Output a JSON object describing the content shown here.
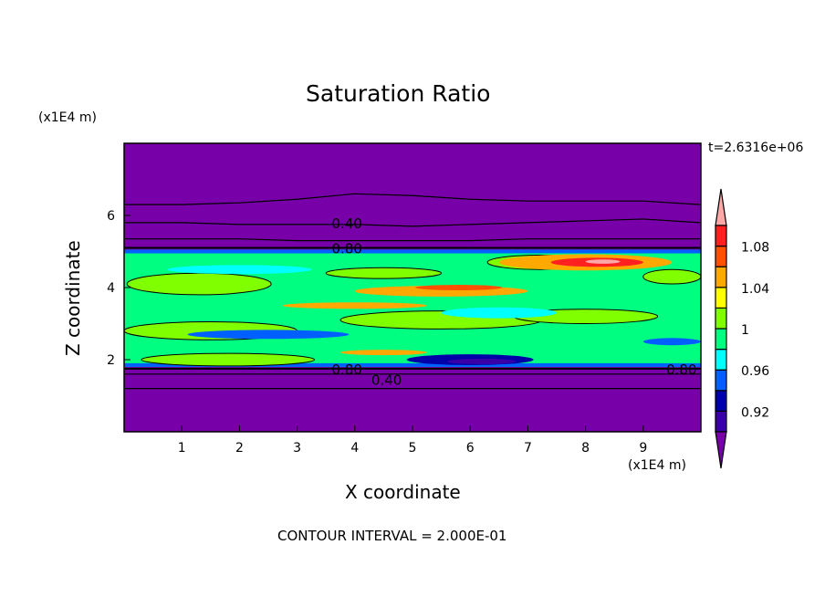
{
  "chart_data": {
    "type": "heatmap",
    "subtype": "filled-contour",
    "title": "Saturation Ratio",
    "xlabel": "X coordinate",
    "ylabel": "Z coordinate",
    "x_unit": "(x1E4 m)",
    "y_unit": "(x1E4 m)",
    "xlim": [
      0,
      10
    ],
    "ylim": [
      0,
      8
    ],
    "xticks": [
      "1",
      "2",
      "3",
      "4",
      "5",
      "6",
      "7",
      "8",
      "9"
    ],
    "yticks": [
      "2",
      "4",
      "6"
    ],
    "time_label": "t=2.6316e+06",
    "footer": "CONTOUR INTERVAL = 2.000E-01",
    "colorbar": {
      "levels": [
        0.9,
        0.92,
        0.94,
        0.96,
        0.98,
        1.0,
        1.02,
        1.04,
        1.06,
        1.08,
        1.1
      ],
      "colors": [
        "#3a00a8",
        "#0000a8",
        "#0060ff",
        "#00ffff",
        "#00ff80",
        "#80ff00",
        "#ffff00",
        "#ffa800",
        "#ff5000",
        "#ff2020"
      ],
      "under_color": "#7800a8",
      "over_color": "#ffa8a8",
      "tick_labels": [
        "0.92",
        "0.96",
        "1",
        "1.04",
        "1.08"
      ]
    },
    "background_value_color": "#7800a8",
    "contour_labels": [
      {
        "text": "0.40",
        "x": 3.6,
        "z": 5.8
      },
      {
        "text": "0.80",
        "x": 3.6,
        "z": 5.1
      },
      {
        "text": "0.80",
        "x": 3.6,
        "z": 1.75
      },
      {
        "text": "0.40",
        "x": 3.6,
        "z": 1.45
      },
      {
        "text": "0.80",
        "x": 9.4,
        "z": 1.75
      }
    ],
    "contour_lines": [
      {
        "level": 0.4,
        "z": [
          6.3,
          6.3,
          6.35,
          6.45,
          6.6,
          6.55,
          6.45,
          6.4,
          6.4,
          6.4,
          6.3
        ]
      },
      {
        "level": 0.4,
        "z": [
          5.8,
          5.8,
          5.75,
          5.75,
          5.75,
          5.7,
          5.75,
          5.8,
          5.85,
          5.9,
          5.8
        ]
      },
      {
        "level": 0.6,
        "z": [
          5.35,
          5.35,
          5.35,
          5.3,
          5.3,
          5.3,
          5.3,
          5.35,
          5.35,
          5.35,
          5.35
        ]
      },
      {
        "level": 0.8,
        "z": [
          5.1,
          5.1,
          5.1,
          5.1,
          5.1,
          5.1,
          5.1,
          5.1,
          5.1,
          5.1,
          5.1
        ]
      },
      {
        "level": 0.8,
        "z": [
          1.75,
          1.75,
          1.75,
          1.75,
          1.75,
          1.75,
          1.75,
          1.75,
          1.75,
          1.75,
          1.75
        ]
      },
      {
        "level": 0.6,
        "z": [
          1.6,
          1.6,
          1.6,
          1.6,
          1.6,
          1.6,
          1.6,
          1.6,
          1.6,
          1.6,
          1.6
        ]
      },
      {
        "level": 0.4,
        "z": [
          1.2,
          1.2,
          1.2,
          1.2,
          1.2,
          1.2,
          1.2,
          1.2,
          1.2,
          1.2,
          1.2
        ]
      }
    ],
    "moist_layer": {
      "z_bottom": 1.8,
      "z_top": 5.05,
      "base_value": 0.99
    },
    "features": [
      {
        "x": 1.5,
        "z": 2.8,
        "w": 3.0,
        "h": 0.5,
        "value": 1.01
      },
      {
        "x": 5.5,
        "z": 3.1,
        "w": 3.5,
        "h": 0.5,
        "value": 1.01
      },
      {
        "x": 8.0,
        "z": 3.2,
        "w": 2.5,
        "h": 0.4,
        "value": 1.01
      },
      {
        "x": 1.8,
        "z": 2.0,
        "w": 3.0,
        "h": 0.35,
        "value": 1.01
      },
      {
        "x": 1.3,
        "z": 4.1,
        "w": 2.5,
        "h": 0.6,
        "value": 1.01
      },
      {
        "x": 4.5,
        "z": 4.4,
        "w": 2.0,
        "h": 0.3,
        "value": 1.01
      },
      {
        "x": 7.2,
        "z": 4.7,
        "w": 1.8,
        "h": 0.4,
        "value": 1.01
      },
      {
        "x": 9.5,
        "z": 4.3,
        "w": 1.0,
        "h": 0.4,
        "value": 1.01
      },
      {
        "x": 8.0,
        "z": 4.7,
        "w": 3.0,
        "h": 0.45,
        "value": 1.05
      },
      {
        "x": 8.2,
        "z": 4.7,
        "w": 1.6,
        "h": 0.25,
        "value": 1.08
      },
      {
        "x": 8.3,
        "z": 4.72,
        "w": 0.6,
        "h": 0.12,
        "value": 1.1
      },
      {
        "x": 5.5,
        "z": 3.9,
        "w": 3.0,
        "h": 0.3,
        "value": 1.05
      },
      {
        "x": 5.8,
        "z": 4.0,
        "w": 1.5,
        "h": 0.15,
        "value": 1.07
      },
      {
        "x": 4.0,
        "z": 3.5,
        "w": 2.5,
        "h": 0.18,
        "value": 1.04
      },
      {
        "x": 2.0,
        "z": 4.5,
        "w": 2.5,
        "h": 0.25,
        "value": 0.96
      },
      {
        "x": 6.5,
        "z": 3.3,
        "w": 2.0,
        "h": 0.3,
        "value": 0.96
      },
      {
        "x": 2.5,
        "z": 2.7,
        "w": 2.8,
        "h": 0.25,
        "value": 0.95
      },
      {
        "x": 6.0,
        "z": 2.0,
        "w": 2.2,
        "h": 0.3,
        "value": 0.93
      },
      {
        "x": 6.2,
        "z": 1.95,
        "w": 1.2,
        "h": 0.15,
        "value": 0.91
      },
      {
        "x": 9.5,
        "z": 2.5,
        "w": 1.0,
        "h": 0.2,
        "value": 0.95
      },
      {
        "x": 4.5,
        "z": 2.2,
        "w": 1.5,
        "h": 0.15,
        "value": 1.05
      }
    ]
  }
}
